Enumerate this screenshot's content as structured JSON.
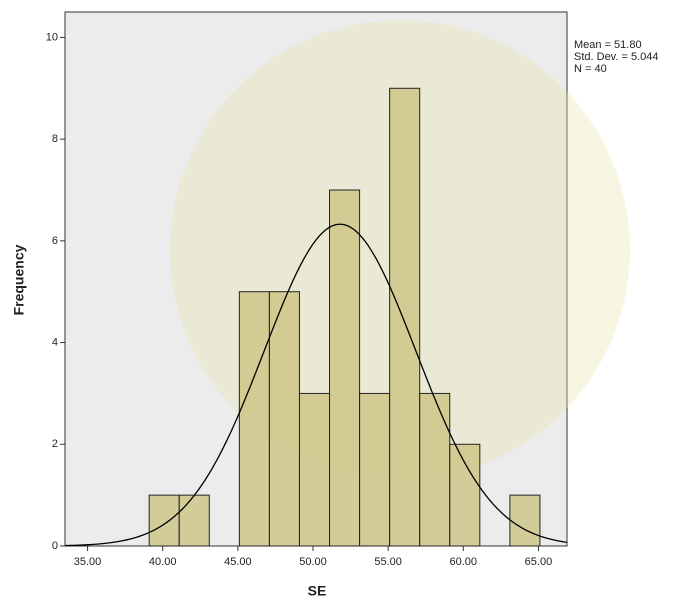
{
  "chart_data": {
    "type": "histogram",
    "x_label": "SE",
    "y_label": "Frequency",
    "bins": [
      39.1,
      41.1,
      43.1,
      45.1,
      47.1,
      49.1,
      51.1,
      53.1,
      55.1,
      57.1,
      59.1,
      61.1,
      63.1,
      65.1
    ],
    "values": [
      1,
      1,
      0,
      5,
      5,
      3,
      7,
      3,
      9,
      3,
      2,
      0,
      1
    ],
    "color": "#c9c17e",
    "xlim": [
      33.5,
      66.9
    ],
    "xticks": [
      {
        "value": 35,
        "label": "35.00"
      },
      {
        "value": 40,
        "label": "40.00"
      },
      {
        "value": 45,
        "label": "45.00"
      },
      {
        "value": 50,
        "label": "50.00"
      },
      {
        "value": 55,
        "label": "55.00"
      },
      {
        "value": 60,
        "label": "60.00"
      },
      {
        "value": 65,
        "label": "65.00"
      }
    ],
    "ylim": [
      0,
      10.5
    ],
    "yticks": [
      0,
      2,
      4,
      6,
      8,
      10
    ],
    "normal_curve": {
      "mean": 51.8,
      "std": 5.044,
      "n": 40,
      "color": "#000000",
      "labels": [
        "Mean = 51.80",
        "Std. Dev. = 5.044",
        "N = 40"
      ]
    }
  }
}
